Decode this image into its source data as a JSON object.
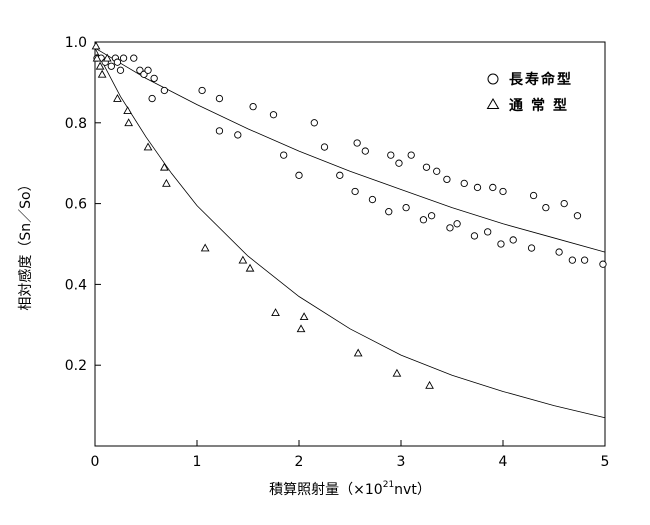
{
  "chart_data": {
    "type": "scatter",
    "xlabel_main": "積算照射量（×10",
    "xlabel_sup": "21",
    "xlabel_tail": "nvt）",
    "ylabel": "相対感度（Sn／So）",
    "xlim": [
      0,
      5
    ],
    "ylim": [
      0,
      1.0
    ],
    "x_ticks": [
      "0",
      "1",
      "2",
      "3",
      "4",
      "5"
    ],
    "y_ticks": [
      "0.2",
      "0.4",
      "0.6",
      "0.8",
      "1.0"
    ],
    "grid": false,
    "legend_position": "top-right",
    "series": [
      {
        "name": "長寿命型",
        "marker": "circle",
        "points": [
          [
            0.02,
            0.96
          ],
          [
            0.06,
            0.96
          ],
          [
            0.1,
            0.95
          ],
          [
            0.16,
            0.94
          ],
          [
            0.2,
            0.96
          ],
          [
            0.22,
            0.95
          ],
          [
            0.25,
            0.93
          ],
          [
            0.28,
            0.96
          ],
          [
            0.38,
            0.96
          ],
          [
            0.44,
            0.93
          ],
          [
            0.48,
            0.92
          ],
          [
            0.52,
            0.93
          ],
          [
            0.56,
            0.86
          ],
          [
            0.58,
            0.91
          ],
          [
            0.68,
            0.88
          ],
          [
            1.05,
            0.88
          ],
          [
            1.22,
            0.86
          ],
          [
            1.22,
            0.78
          ],
          [
            1.4,
            0.77
          ],
          [
            1.55,
            0.84
          ],
          [
            1.75,
            0.82
          ],
          [
            1.85,
            0.72
          ],
          [
            2.0,
            0.67
          ],
          [
            2.15,
            0.8
          ],
          [
            2.25,
            0.74
          ],
          [
            2.4,
            0.67
          ],
          [
            2.55,
            0.63
          ],
          [
            2.57,
            0.75
          ],
          [
            2.65,
            0.73
          ],
          [
            2.72,
            0.61
          ],
          [
            2.88,
            0.58
          ],
          [
            2.9,
            0.72
          ],
          [
            2.98,
            0.7
          ],
          [
            3.05,
            0.59
          ],
          [
            3.1,
            0.72
          ],
          [
            3.22,
            0.56
          ],
          [
            3.25,
            0.69
          ],
          [
            3.3,
            0.57
          ],
          [
            3.35,
            0.68
          ],
          [
            3.45,
            0.66
          ],
          [
            3.48,
            0.54
          ],
          [
            3.55,
            0.55
          ],
          [
            3.62,
            0.65
          ],
          [
            3.72,
            0.52
          ],
          [
            3.75,
            0.64
          ],
          [
            3.85,
            0.53
          ],
          [
            3.9,
            0.64
          ],
          [
            3.98,
            0.5
          ],
          [
            4.0,
            0.63
          ],
          [
            4.1,
            0.51
          ],
          [
            4.28,
            0.49
          ],
          [
            4.3,
            0.62
          ],
          [
            4.42,
            0.59
          ],
          [
            4.55,
            0.48
          ],
          [
            4.6,
            0.6
          ],
          [
            4.68,
            0.46
          ],
          [
            4.73,
            0.57
          ],
          [
            4.8,
            0.46
          ],
          [
            4.98,
            0.45
          ]
        ],
        "fit": [
          [
            0,
            0.985
          ],
          [
            0.5,
            0.91
          ],
          [
            1,
            0.845
          ],
          [
            1.5,
            0.785
          ],
          [
            2,
            0.73
          ],
          [
            2.5,
            0.68
          ],
          [
            3,
            0.635
          ],
          [
            3.5,
            0.59
          ],
          [
            4,
            0.55
          ],
          [
            4.5,
            0.515
          ],
          [
            5,
            0.48
          ]
        ]
      },
      {
        "name": "通常型",
        "marker": "triangle",
        "points": [
          [
            0.01,
            0.99
          ],
          [
            0.02,
            0.96
          ],
          [
            0.05,
            0.94
          ],
          [
            0.07,
            0.92
          ],
          [
            0.12,
            0.96
          ],
          [
            0.22,
            0.86
          ],
          [
            0.32,
            0.83
          ],
          [
            0.33,
            0.8
          ],
          [
            0.52,
            0.74
          ],
          [
            0.68,
            0.69
          ],
          [
            0.7,
            0.65
          ],
          [
            1.08,
            0.49
          ],
          [
            1.45,
            0.46
          ],
          [
            1.52,
            0.44
          ],
          [
            1.77,
            0.33
          ],
          [
            2.02,
            0.29
          ],
          [
            2.05,
            0.32
          ],
          [
            2.58,
            0.23
          ],
          [
            2.96,
            0.18
          ],
          [
            3.28,
            0.15
          ]
        ],
        "fit": [
          [
            0,
            0.985
          ],
          [
            0.25,
            0.865
          ],
          [
            0.5,
            0.765
          ],
          [
            0.75,
            0.675
          ],
          [
            1,
            0.595
          ],
          [
            1.5,
            0.47
          ],
          [
            2,
            0.37
          ],
          [
            2.5,
            0.29
          ],
          [
            3,
            0.225
          ],
          [
            3.5,
            0.175
          ],
          [
            4,
            0.135
          ],
          [
            4.5,
            0.1
          ],
          [
            5,
            0.07
          ]
        ]
      }
    ]
  }
}
